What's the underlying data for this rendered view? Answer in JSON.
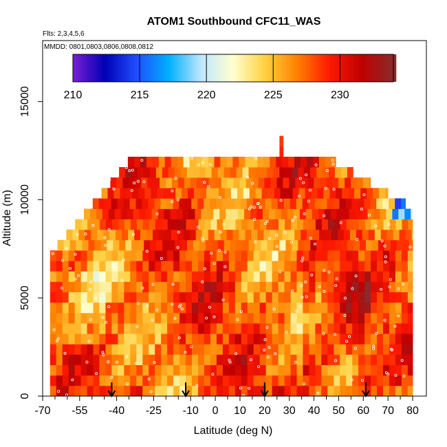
{
  "chart_data": {
    "type": "heatmap",
    "title": "ATOM1 Southbound CFC11_WAS",
    "subtitle": "Flts: 2,3,4,5,6",
    "annotation": "MMDD: 0801,0803,0806,0808,0812",
    "xlabel": "Latitude (deg N)",
    "ylabel": "Altitude (m)",
    "xlim": [
      -70,
      82
    ],
    "ylim": [
      0,
      17500
    ],
    "x_ticks": [
      -70,
      -55,
      -40,
      -25,
      -10,
      0,
      10,
      20,
      30,
      40,
      50,
      60,
      70,
      80
    ],
    "x_tick_labels": [
      "-70",
      "-55",
      "-40",
      "-25",
      "-10",
      "0",
      "10",
      "20",
      "30",
      "40",
      "50",
      "60",
      "70",
      "80"
    ],
    "x_minor_ticks": [
      -65,
      -60,
      -50,
      -45,
      -35,
      -30,
      -20,
      -15,
      -5,
      5,
      15,
      25,
      35,
      45,
      55,
      65,
      75
    ],
    "y_ticks": [
      0,
      5000,
      10000,
      15000
    ],
    "y_tick_labels": [
      "0",
      "5000",
      "10000",
      "15000"
    ],
    "colorbar": {
      "min": 210,
      "max": 234,
      "ticks": [
        210,
        215,
        220,
        225,
        230
      ],
      "tick_labels": [
        "210",
        "215",
        "220",
        "225",
        "230"
      ],
      "colors": [
        "#7a1fd6",
        "#0000b4",
        "#1f4fff",
        "#00b0ff",
        "#bfe6ff",
        "#ffffd0",
        "#ffd040",
        "#ff8000",
        "#ff1a00",
        "#c00000",
        "#8b2a2a"
      ],
      "position": "top"
    },
    "flight_crossing_latitudes": [
      -42,
      -12,
      20,
      61
    ],
    "grid": false,
    "legend": "none"
  }
}
